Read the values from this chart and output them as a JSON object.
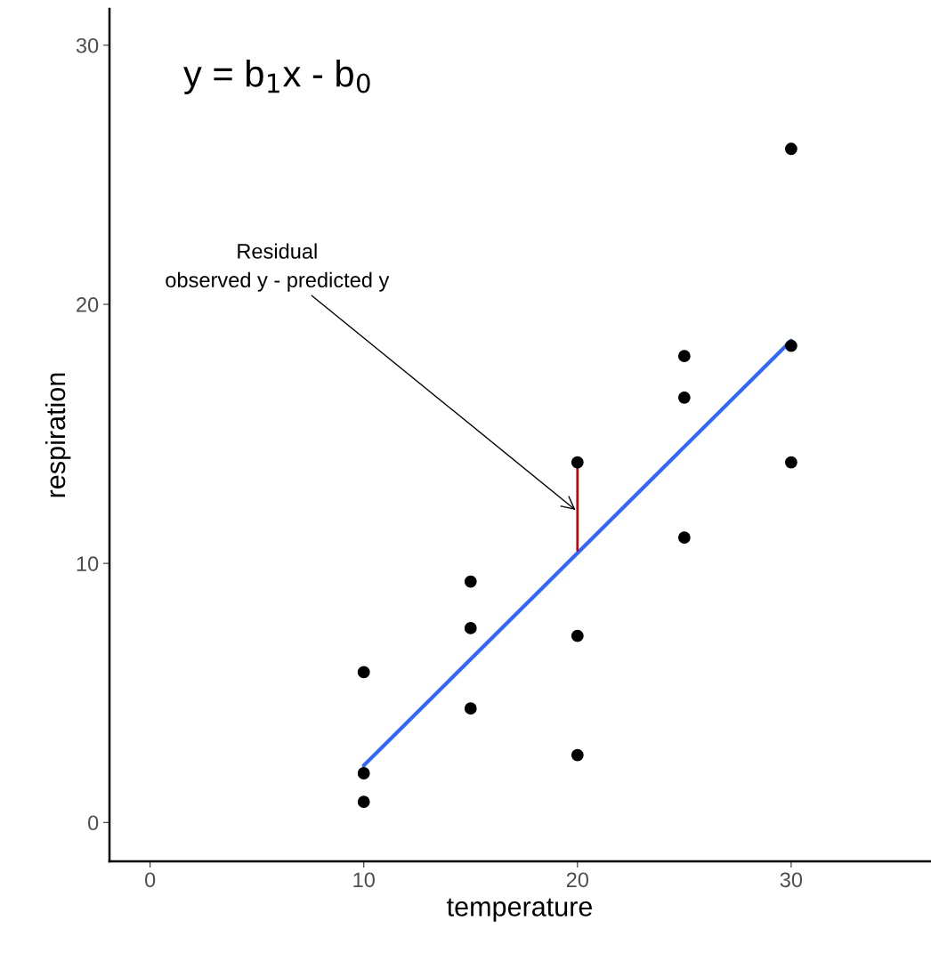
{
  "chart_data": {
    "type": "scatter",
    "xlabel": "temperature",
    "ylabel": "respiration",
    "xlim": [
      -1.9,
      36.5
    ],
    "ylim": [
      -1.5,
      31.4
    ],
    "xticks": [
      0,
      10,
      20,
      30
    ],
    "yticks": [
      0,
      10,
      20,
      30
    ],
    "grid": false,
    "series": [
      {
        "marker": "circle",
        "color": "#000000",
        "x": [
          10,
          10,
          10,
          15,
          15,
          15,
          20,
          20,
          20,
          25,
          25,
          25,
          30,
          30,
          30
        ],
        "values": [
          5.8,
          1.9,
          0.8,
          9.3,
          7.5,
          4.4,
          13.9,
          7.2,
          2.6,
          18.0,
          16.4,
          11.0,
          26.0,
          18.4,
          13.9
        ]
      },
      {
        "type": "line",
        "color": "#3366ff",
        "x": [
          10,
          30
        ],
        "values": [
          2.2,
          18.6
        ]
      },
      {
        "type": "line",
        "color": "#cc0000",
        "x": [
          20,
          20
        ],
        "values": [
          10.5,
          13.9
        ]
      }
    ],
    "annotations": [
      "y = b$_{1}$x - b$_{0}$",
      {
        "text": "Residual\nobserved y - predicted y",
        "x": 20,
        "y": 12
      }
    ]
  }
}
